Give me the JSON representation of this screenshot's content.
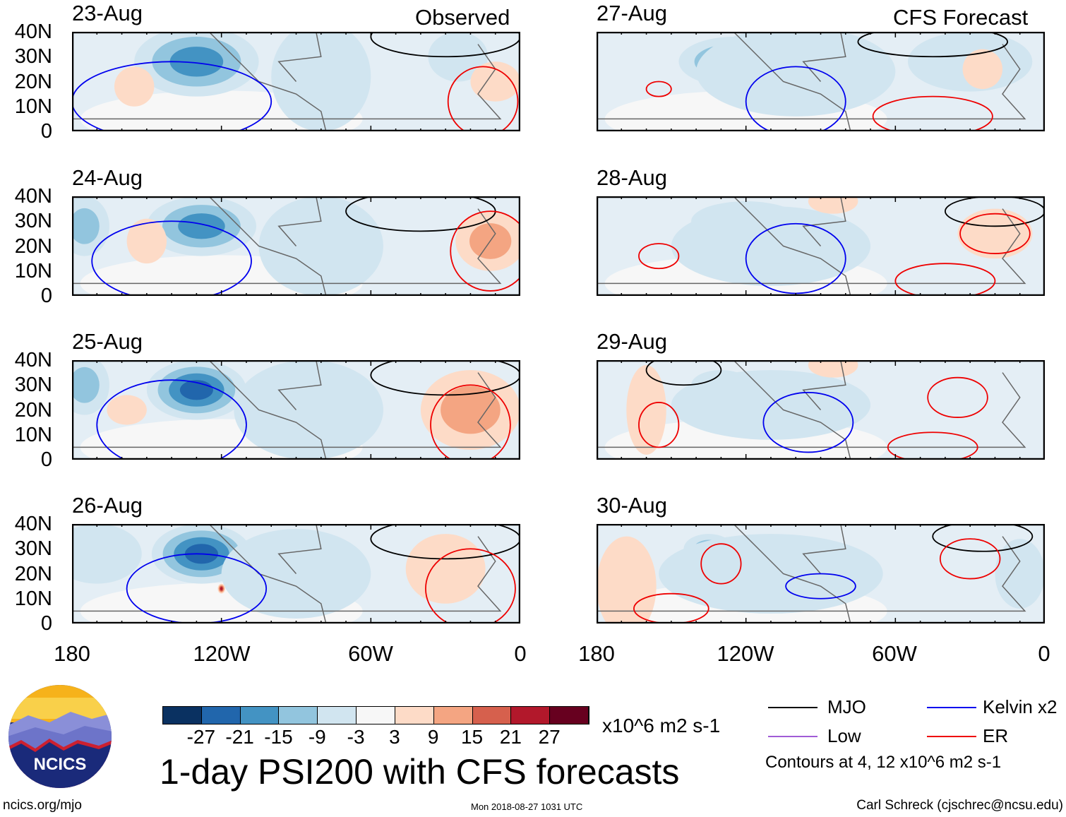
{
  "title": "1-day PSI200 with CFS forecasts",
  "sections": {
    "left": "Observed",
    "right": "CFS Forecast"
  },
  "panels": [
    {
      "date": "23-Aug",
      "col": 0,
      "row": 0,
      "blobs": [
        {
          "lon": 130,
          "lat": 28,
          "v": -20,
          "rx": 25,
          "ry": 14
        },
        {
          "lon": 80,
          "lat": 22,
          "v": -8,
          "rx": 20,
          "ry": 22
        },
        {
          "lon": 155,
          "lat": 18,
          "v": 6,
          "rx": 8,
          "ry": 8
        },
        {
          "lon": 25,
          "lat": 30,
          "v": -8,
          "rx": 12,
          "ry": 10
        },
        {
          "lon": 10,
          "lat": 20,
          "v": 6,
          "rx": 10,
          "ry": 8
        }
      ],
      "contours": [
        {
          "type": "Kelvin",
          "lon": 140,
          "lat": 12,
          "rx": 40,
          "ry": 16
        },
        {
          "type": "MJO",
          "lon": 30,
          "lat": 38,
          "rx": 30,
          "ry": 8
        },
        {
          "type": "ER",
          "lon": 15,
          "lat": 12,
          "rx": 14,
          "ry": 14
        }
      ]
    },
    {
      "date": "24-Aug",
      "col": 0,
      "row": 1,
      "blobs": [
        {
          "lon": 128,
          "lat": 28,
          "v": -20,
          "rx": 22,
          "ry": 12
        },
        {
          "lon": 175,
          "lat": 28,
          "v": -14,
          "rx": 10,
          "ry": 12
        },
        {
          "lon": 80,
          "lat": 20,
          "v": -8,
          "rx": 25,
          "ry": 20
        },
        {
          "lon": 150,
          "lat": 22,
          "v": 6,
          "rx": 8,
          "ry": 9
        },
        {
          "lon": 12,
          "lat": 22,
          "v": 12,
          "rx": 14,
          "ry": 12
        }
      ],
      "contours": [
        {
          "type": "Kelvin",
          "lon": 140,
          "lat": 14,
          "rx": 32,
          "ry": 16
        },
        {
          "type": "MJO",
          "lon": 40,
          "lat": 34,
          "rx": 30,
          "ry": 8
        },
        {
          "type": "ER",
          "lon": 12,
          "lat": 18,
          "rx": 16,
          "ry": 16
        }
      ]
    },
    {
      "date": "25-Aug",
      "col": 0,
      "row": 2,
      "blobs": [
        {
          "lon": 130,
          "lat": 28,
          "v": -24,
          "rx": 20,
          "ry": 12
        },
        {
          "lon": 175,
          "lat": 30,
          "v": -14,
          "rx": 10,
          "ry": 12
        },
        {
          "lon": 85,
          "lat": 20,
          "v": -6,
          "rx": 30,
          "ry": 20
        },
        {
          "lon": 158,
          "lat": 20,
          "v": 6,
          "rx": 8,
          "ry": 6
        },
        {
          "lon": 20,
          "lat": 20,
          "v": 12,
          "rx": 20,
          "ry": 16
        }
      ],
      "contours": [
        {
          "type": "Kelvin",
          "lon": 140,
          "lat": 14,
          "rx": 30,
          "ry": 18
        },
        {
          "type": "MJO",
          "lon": 30,
          "lat": 34,
          "rx": 30,
          "ry": 8
        },
        {
          "type": "ER",
          "lon": 20,
          "lat": 14,
          "rx": 16,
          "ry": 16
        }
      ]
    },
    {
      "date": "26-Aug",
      "col": 0,
      "row": 3,
      "blobs": [
        {
          "lon": 128,
          "lat": 28,
          "v": -24,
          "rx": 20,
          "ry": 12
        },
        {
          "lon": 170,
          "lat": 28,
          "v": -8,
          "rx": 18,
          "ry": 12
        },
        {
          "lon": 90,
          "lat": 20,
          "v": -6,
          "rx": 30,
          "ry": 18
        },
        {
          "lon": 120,
          "lat": 14,
          "v": 27,
          "rx": 1.5,
          "ry": 2
        },
        {
          "lon": 30,
          "lat": 22,
          "v": 8,
          "rx": 16,
          "ry": 14
        }
      ],
      "contours": [
        {
          "type": "Kelvin",
          "lon": 130,
          "lat": 14,
          "rx": 28,
          "ry": 14
        },
        {
          "type": "MJO",
          "lon": 30,
          "lat": 34,
          "rx": 30,
          "ry": 8
        },
        {
          "type": "ER",
          "lon": 20,
          "lat": 14,
          "rx": 18,
          "ry": 16
        }
      ]
    },
    {
      "date": "27-Aug",
      "col": 1,
      "row": 0,
      "blobs": [
        {
          "lon": 125,
          "lat": 28,
          "v": -20,
          "rx": 22,
          "ry": 10
        },
        {
          "lon": 100,
          "lat": 24,
          "v": -8,
          "rx": 40,
          "ry": 18
        },
        {
          "lon": 30,
          "lat": 28,
          "v": -6,
          "rx": 25,
          "ry": 12
        },
        {
          "lon": 25,
          "lat": 25,
          "v": 6,
          "rx": 8,
          "ry": 8
        }
      ],
      "contours": [
        {
          "type": "Kelvin",
          "lon": 100,
          "lat": 12,
          "rx": 20,
          "ry": 14
        },
        {
          "type": "MJO",
          "lon": 45,
          "lat": 36,
          "rx": 30,
          "ry": 6
        },
        {
          "type": "ER",
          "lon": 45,
          "lat": 6,
          "rx": 24,
          "ry": 8
        },
        {
          "type": "ER",
          "lon": 155,
          "lat": 17,
          "rx": 5,
          "ry": 3
        }
      ]
    },
    {
      "date": "28-Aug",
      "col": 1,
      "row": 1,
      "blobs": [
        {
          "lon": 120,
          "lat": 30,
          "v": -14,
          "rx": 22,
          "ry": 8
        },
        {
          "lon": 110,
          "lat": 20,
          "v": -6,
          "rx": 40,
          "ry": 16
        },
        {
          "lon": 20,
          "lat": 25,
          "v": 6,
          "rx": 15,
          "ry": 10
        },
        {
          "lon": 85,
          "lat": 38,
          "v": 8,
          "rx": 10,
          "ry": 5
        }
      ],
      "contours": [
        {
          "type": "Kelvin",
          "lon": 100,
          "lat": 15,
          "rx": 20,
          "ry": 14
        },
        {
          "type": "MJO",
          "lon": 20,
          "lat": 34,
          "rx": 20,
          "ry": 6
        },
        {
          "type": "ER",
          "lon": 155,
          "lat": 16,
          "rx": 8,
          "ry": 5
        },
        {
          "type": "ER",
          "lon": 40,
          "lat": 6,
          "rx": 20,
          "ry": 7
        },
        {
          "type": "ER",
          "lon": 20,
          "lat": 25,
          "rx": 14,
          "ry": 8
        }
      ]
    },
    {
      "date": "29-Aug",
      "col": 1,
      "row": 2,
      "blobs": [
        {
          "lon": 130,
          "lat": 30,
          "v": -14,
          "rx": 12,
          "ry": 6
        },
        {
          "lon": 110,
          "lat": 22,
          "v": -6,
          "rx": 40,
          "ry": 14
        },
        {
          "lon": 160,
          "lat": 20,
          "v": 8,
          "rx": 8,
          "ry": 18
        },
        {
          "lon": 85,
          "lat": 38,
          "v": 8,
          "rx": 10,
          "ry": 5
        }
      ],
      "contours": [
        {
          "type": "Kelvin",
          "lon": 95,
          "lat": 15,
          "rx": 18,
          "ry": 12
        },
        {
          "type": "MJO",
          "lon": 145,
          "lat": 36,
          "rx": 15,
          "ry": 6
        },
        {
          "type": "ER",
          "lon": 155,
          "lat": 14,
          "rx": 8,
          "ry": 9
        },
        {
          "type": "ER",
          "lon": 35,
          "lat": 25,
          "rx": 12,
          "ry": 8
        },
        {
          "type": "ER",
          "lon": 45,
          "lat": 5,
          "rx": 18,
          "ry": 6
        }
      ]
    },
    {
      "date": "30-Aug",
      "col": 1,
      "row": 3,
      "blobs": [
        {
          "lon": 135,
          "lat": 30,
          "v": -14,
          "rx": 10,
          "ry": 6
        },
        {
          "lon": 110,
          "lat": 20,
          "v": -6,
          "rx": 45,
          "ry": 16
        },
        {
          "lon": 168,
          "lat": 15,
          "v": 8,
          "rx": 12,
          "ry": 20
        },
        {
          "lon": 10,
          "lat": 20,
          "v": -6,
          "rx": 10,
          "ry": 14
        }
      ],
      "contours": [
        {
          "type": "Kelvin",
          "lon": 90,
          "lat": 15,
          "rx": 14,
          "ry": 5
        },
        {
          "type": "MJO",
          "lon": 25,
          "lat": 35,
          "rx": 20,
          "ry": 6
        },
        {
          "type": "ER",
          "lon": 130,
          "lat": 24,
          "rx": 8,
          "ry": 8
        },
        {
          "type": "ER",
          "lon": 30,
          "lat": 26,
          "rx": 12,
          "ry": 8
        },
        {
          "type": "ER",
          "lon": 150,
          "lat": 6,
          "rx": 15,
          "ry": 6
        }
      ]
    }
  ],
  "lat_ticks": [
    "40N",
    "30N",
    "20N",
    "10N",
    "0"
  ],
  "lon_ticks": [
    "180",
    "120W",
    "60W",
    "0"
  ],
  "colorbar": {
    "labels": [
      "-27",
      "-21",
      "-15",
      "-9",
      "-3",
      "3",
      "9",
      "15",
      "21",
      "27"
    ],
    "colors": [
      "#0a3161",
      "#2166ac",
      "#4393c3",
      "#92c5de",
      "#d1e5f0",
      "#f7f7f7",
      "#fddbc7",
      "#f4a582",
      "#d6604d",
      "#b2182b",
      "#67001f"
    ],
    "units": "x10^6 m2 s-1"
  },
  "legend": {
    "items": [
      {
        "label": "MJO",
        "color": "#000000"
      },
      {
        "label": "Kelvin x2",
        "color": "#0000ee"
      },
      {
        "label": "Low",
        "color": "#a05cd6"
      },
      {
        "label": "ER",
        "color": "#ee0000"
      }
    ],
    "note": "Contours at 4, 12 x10^6 m2 s-1"
  },
  "logo": {
    "text": "NCICS"
  },
  "footer": {
    "url": "ncics.org/mjo",
    "timestamp": "Mon 2018-08-27 1031 UTC",
    "author": "Carl Schreck (cjschrec@ncsu.edu)"
  }
}
